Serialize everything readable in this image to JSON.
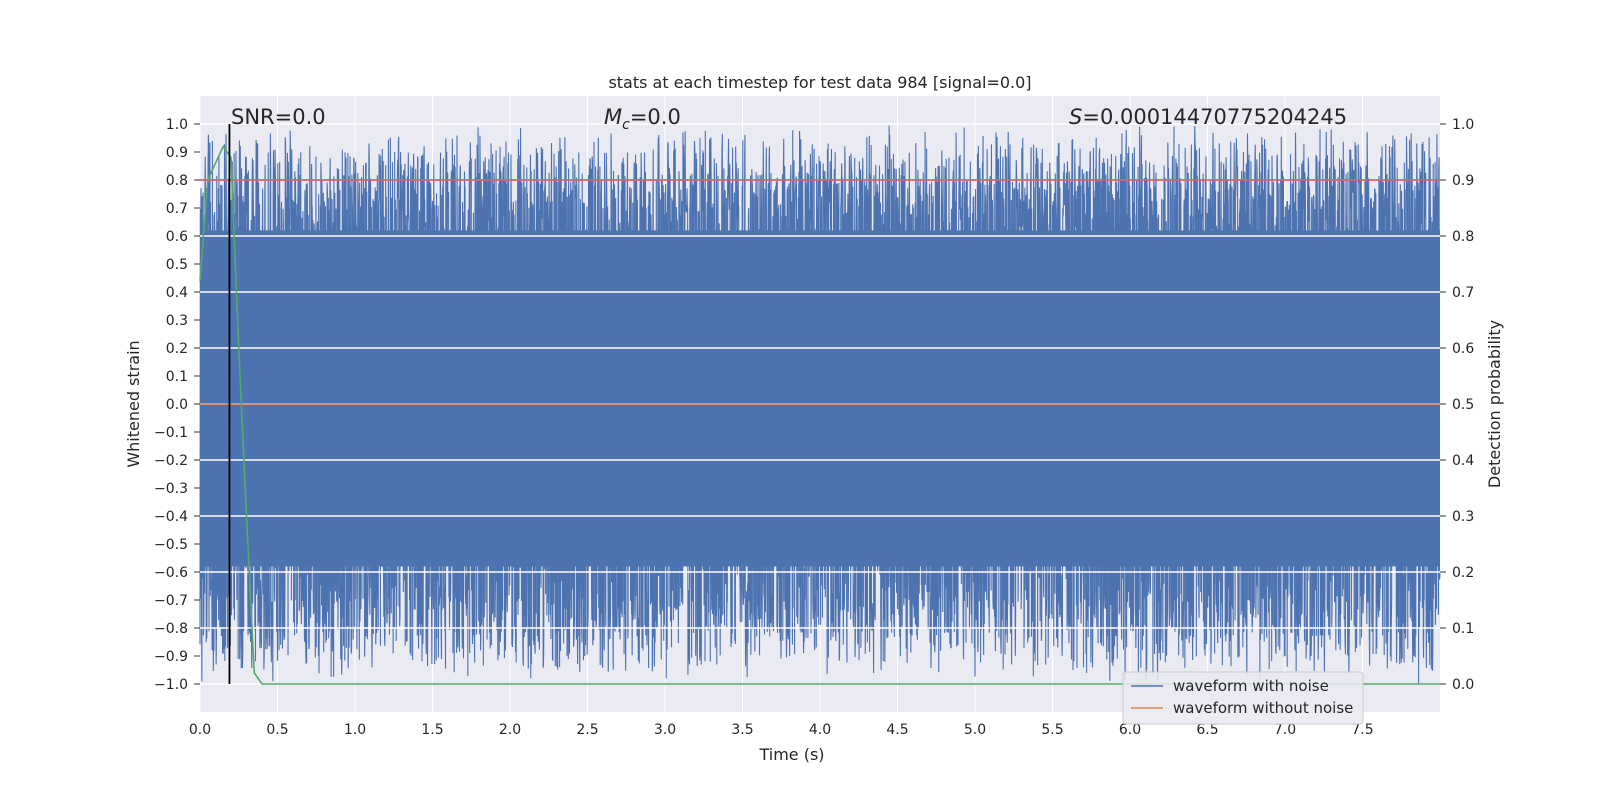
{
  "chart_data": {
    "type": "line",
    "title": "stats at each timestep for test data 984 [signal=0.0]",
    "xlabel": "Time (s)",
    "ylabel": "Whitened strain",
    "y2label": "Detection probability",
    "xlim": [
      0.0,
      8.0
    ],
    "ylim": [
      -1.1,
      1.1
    ],
    "y2lim": [
      -0.05,
      1.05
    ],
    "xticks": [
      0.0,
      0.5,
      1.0,
      1.5,
      2.0,
      2.5,
      3.0,
      3.5,
      4.0,
      4.5,
      5.0,
      5.5,
      6.0,
      6.5,
      7.0,
      7.5
    ],
    "xtick_labels": [
      "0.0",
      "0.5",
      "1.0",
      "1.5",
      "2.0",
      "2.5",
      "3.0",
      "3.5",
      "4.0",
      "4.5",
      "5.0",
      "5.5",
      "6.0",
      "6.5",
      "7.0",
      "7.5"
    ],
    "yticks": [
      1.0,
      0.9,
      0.8,
      0.7,
      0.6,
      0.5,
      0.4,
      0.3,
      0.2,
      0.1,
      0.0,
      -0.1,
      -0.2,
      -0.3,
      -0.4,
      -0.5,
      -0.6,
      -0.7,
      -0.8,
      -0.9,
      -1.0
    ],
    "ytick_labels": [
      "1.0",
      "0.9",
      "0.8",
      "0.7",
      "0.6",
      "0.5",
      "0.4",
      "0.3",
      "0.2",
      "0.1",
      "0.0",
      "−0.1",
      "−0.2",
      "−0.3",
      "−0.4",
      "−0.5",
      "−0.6",
      "−0.7",
      "−0.8",
      "−0.9",
      "−1.0"
    ],
    "y2ticks": [
      1.0,
      0.9,
      0.8,
      0.7,
      0.6,
      0.5,
      0.4,
      0.3,
      0.2,
      0.1,
      0.0
    ],
    "y2tick_labels": [
      "1.0",
      "0.9",
      "0.8",
      "0.7",
      "0.6",
      "0.5",
      "0.4",
      "0.3",
      "0.2",
      "0.1",
      "0.0"
    ],
    "annotations": {
      "snr": "SNR=0.0",
      "mc_symbol": "M",
      "mc_sub": "c",
      "mc_value": "=0.0",
      "s_symbol": "S",
      "s_value": "=0.00014470775204245"
    },
    "series": [
      {
        "name": "waveform with noise",
        "axis": "left",
        "color": "#4c72b0",
        "description_value": "dense noise filling nearly the full range [-1.0, 1.0] across t=0 to 8 s"
      },
      {
        "name": "waveform without noise",
        "axis": "left",
        "color": "#dd8452",
        "values": [
          0.0,
          0.0
        ],
        "x": [
          0.0,
          8.0
        ]
      },
      {
        "axis": "right",
        "color": "#55a868",
        "x": [
          0.0,
          0.05,
          0.1,
          0.15,
          0.2,
          0.25,
          0.3,
          0.35,
          0.4,
          8.0
        ],
        "values": [
          0.72,
          0.9,
          0.93,
          0.96,
          0.94,
          0.6,
          0.3,
          0.02,
          0.0,
          0.0
        ]
      }
    ],
    "hlines": [
      {
        "axis": "right",
        "value": 0.9,
        "color": "#c44e52"
      }
    ],
    "vlines": [
      {
        "x": 0.19,
        "color": "#000000"
      }
    ],
    "legend_placement": "lower-right",
    "grid": true,
    "colors": {
      "axes_bg": "#eaeaf2",
      "grid": "#ffffff",
      "noise": "#4c72b0",
      "clean": "#dd8452",
      "prob": "#55a868",
      "threshold": "#c44e52",
      "marker": "#000000"
    }
  }
}
